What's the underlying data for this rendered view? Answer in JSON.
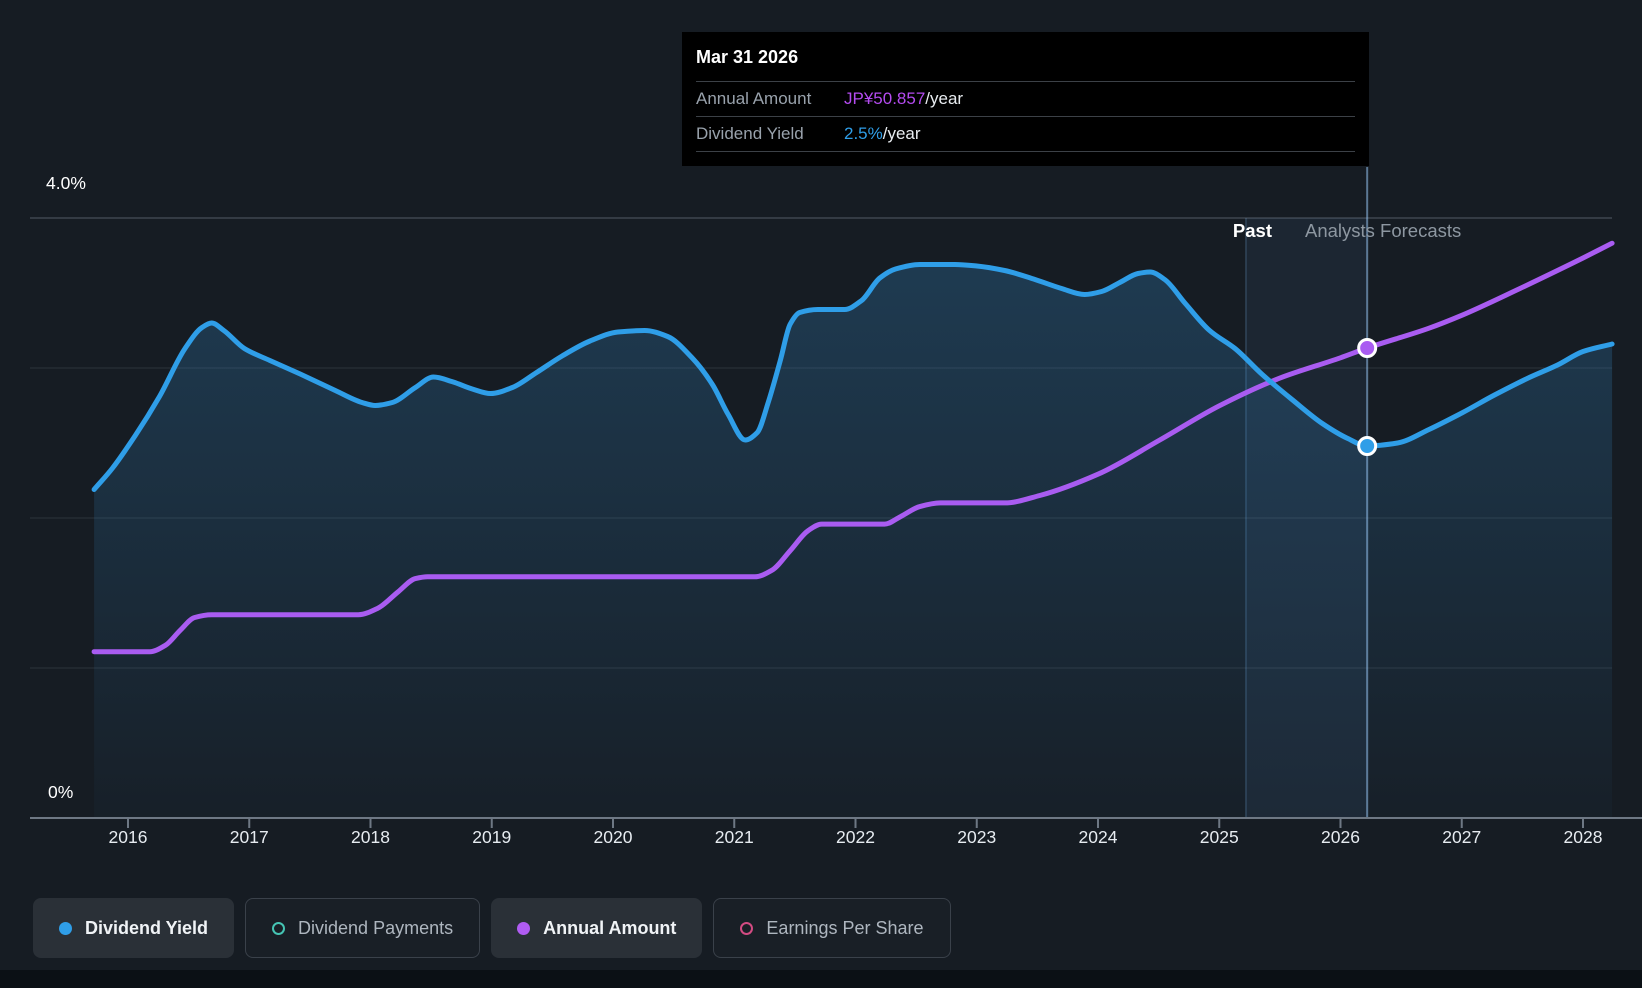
{
  "tooltip": {
    "date": "Mar 31 2026",
    "rows": [
      {
        "label": "Annual Amount",
        "value": "JP¥50.857",
        "suffix": "/year",
        "color": "#b44bf0"
      },
      {
        "label": "Dividend Yield",
        "value": "2.5%",
        "suffix": "/year",
        "color": "#2f9ee8"
      }
    ]
  },
  "axis": {
    "y_top_label": "4.0%",
    "y_bottom_label": "0%",
    "years": [
      2016,
      2017,
      2018,
      2019,
      2020,
      2021,
      2022,
      2023,
      2024,
      2025,
      2026,
      2027,
      2028
    ]
  },
  "annotations": {
    "past": "Past",
    "forecast": "Analysts Forecasts"
  },
  "legend": [
    {
      "label": "Dividend Yield",
      "color": "#2f9ee8",
      "icon": "filled-circle",
      "active": true
    },
    {
      "label": "Dividend Payments",
      "color": "#45c4b3",
      "icon": "ring",
      "active": false
    },
    {
      "label": "Annual Amount",
      "color": "#b05cf2",
      "icon": "filled-circle",
      "active": true
    },
    {
      "label": "Earnings Per Share",
      "color": "#d24b82",
      "icon": "ring",
      "active": false
    }
  ],
  "colors": {
    "background": "#161c23",
    "dividend_yield_line": "#2f9ee8",
    "annual_amount_line": "#a95cf1",
    "grid": "rgba(173,186,199,0.15)",
    "axis": "#6e7884",
    "forecast_band": "rgba(104,166,224,0.08)",
    "hover_line": "rgba(150,195,240,0.55)"
  },
  "chart_data": {
    "type": "area",
    "title": "Dividend history and forecast",
    "x_axis": {
      "min": 2015.7,
      "max": 2028.25,
      "ticks": [
        2016,
        2017,
        2018,
        2019,
        2020,
        2021,
        2022,
        2023,
        2024,
        2025,
        2026,
        2027,
        2028
      ]
    },
    "y_axis": {
      "unit": "%",
      "min": 0,
      "max": 4.0,
      "gridlines_pct": [
        1,
        2,
        3,
        4
      ],
      "top_label": "4.0%",
      "bottom_label": "0%"
    },
    "regions": {
      "past_label": "Past",
      "forecast_label": "Analysts Forecasts",
      "band_start_year": 2025.22,
      "band_end_year": 2026.22
    },
    "series": [
      {
        "name": "Dividend Yield",
        "style": "area",
        "unit": "%",
        "color": "#2f9ee8",
        "points": [
          [
            2015.72,
            2.19
          ],
          [
            2015.87,
            2.33
          ],
          [
            2016.06,
            2.55
          ],
          [
            2016.26,
            2.81
          ],
          [
            2016.47,
            3.13
          ],
          [
            2016.61,
            3.27
          ],
          [
            2016.69,
            3.3
          ],
          [
            2016.79,
            3.25
          ],
          [
            2016.96,
            3.13
          ],
          [
            2017.17,
            3.05
          ],
          [
            2017.42,
            2.96
          ],
          [
            2017.71,
            2.85
          ],
          [
            2017.93,
            2.77
          ],
          [
            2018.04,
            2.75
          ],
          [
            2018.18,
            2.77
          ],
          [
            2018.37,
            2.87
          ],
          [
            2018.52,
            2.94
          ],
          [
            2018.67,
            2.91
          ],
          [
            2018.84,
            2.86
          ],
          [
            2018.99,
            2.83
          ],
          [
            2019.17,
            2.87
          ],
          [
            2019.37,
            2.97
          ],
          [
            2019.58,
            3.08
          ],
          [
            2019.81,
            3.18
          ],
          [
            2020.04,
            3.24
          ],
          [
            2020.26,
            3.25
          ],
          [
            2020.45,
            3.21
          ],
          [
            2020.65,
            3.07
          ],
          [
            2020.82,
            2.89
          ],
          [
            2020.95,
            2.69
          ],
          [
            2021.09,
            2.52
          ],
          [
            2021.19,
            2.57
          ],
          [
            2021.28,
            2.77
          ],
          [
            2021.38,
            3.05
          ],
          [
            2021.46,
            3.29
          ],
          [
            2021.54,
            3.37
          ],
          [
            2021.69,
            3.39
          ],
          [
            2021.91,
            3.39
          ],
          [
            2022.05,
            3.45
          ],
          [
            2022.2,
            3.6
          ],
          [
            2022.33,
            3.66
          ],
          [
            2022.53,
            3.69
          ],
          [
            2022.82,
            3.69
          ],
          [
            2023.0,
            3.68
          ],
          [
            2023.23,
            3.65
          ],
          [
            2023.48,
            3.59
          ],
          [
            2023.7,
            3.53
          ],
          [
            2023.89,
            3.49
          ],
          [
            2024.03,
            3.51
          ],
          [
            2024.18,
            3.57
          ],
          [
            2024.33,
            3.63
          ],
          [
            2024.43,
            3.64
          ],
          [
            2024.55,
            3.59
          ],
          [
            2024.72,
            3.43
          ],
          [
            2024.92,
            3.25
          ],
          [
            2025.13,
            3.13
          ],
          [
            2025.35,
            2.96
          ],
          [
            2025.6,
            2.79
          ],
          [
            2025.85,
            2.63
          ],
          [
            2026.06,
            2.53
          ],
          [
            2026.22,
            2.48
          ],
          [
            2026.47,
            2.5
          ],
          [
            2026.73,
            2.59
          ],
          [
            2027.0,
            2.7
          ],
          [
            2027.27,
            2.82
          ],
          [
            2027.54,
            2.93
          ],
          [
            2027.79,
            3.02
          ],
          [
            2028.0,
            3.11
          ],
          [
            2028.24,
            3.16
          ]
        ]
      },
      {
        "name": "Annual Amount",
        "style": "line",
        "unit": "JP¥ per share (scale estimated from JP¥50.857 anchor)",
        "color": "#a95cf1",
        "points": [
          [
            2015.72,
            18.0
          ],
          [
            2016.18,
            18.0
          ],
          [
            2016.31,
            18.7
          ],
          [
            2016.43,
            20.3
          ],
          [
            2016.55,
            21.7
          ],
          [
            2016.69,
            22.0
          ],
          [
            2017.9,
            22.0
          ],
          [
            2018.06,
            22.7
          ],
          [
            2018.23,
            24.5
          ],
          [
            2018.37,
            25.9
          ],
          [
            2018.47,
            26.1
          ],
          [
            2021.17,
            26.1
          ],
          [
            2021.31,
            26.8
          ],
          [
            2021.46,
            28.9
          ],
          [
            2021.61,
            31.1
          ],
          [
            2021.72,
            31.8
          ],
          [
            2022.24,
            31.8
          ],
          [
            2022.37,
            32.6
          ],
          [
            2022.53,
            33.7
          ],
          [
            2022.7,
            34.1
          ],
          [
            2023.23,
            34.1
          ],
          [
            2023.52,
            34.9
          ],
          [
            2024.0,
            37.2
          ],
          [
            2024.51,
            40.9
          ],
          [
            2025.0,
            44.6
          ],
          [
            2025.5,
            47.6
          ],
          [
            2026.0,
            49.8
          ],
          [
            2026.22,
            50.857
          ],
          [
            2026.73,
            53.0
          ],
          [
            2027.0,
            54.4
          ],
          [
            2027.48,
            57.3
          ],
          [
            2028.0,
            60.6
          ],
          [
            2028.24,
            62.2
          ]
        ]
      }
    ],
    "markers": [
      {
        "series": "Dividend Yield",
        "year": 2026.22,
        "value": 2.48,
        "label": "2.5%/year"
      },
      {
        "series": "Annual Amount",
        "year": 2026.22,
        "value": 50.857,
        "label": "JP¥50.857/year"
      }
    ]
  }
}
